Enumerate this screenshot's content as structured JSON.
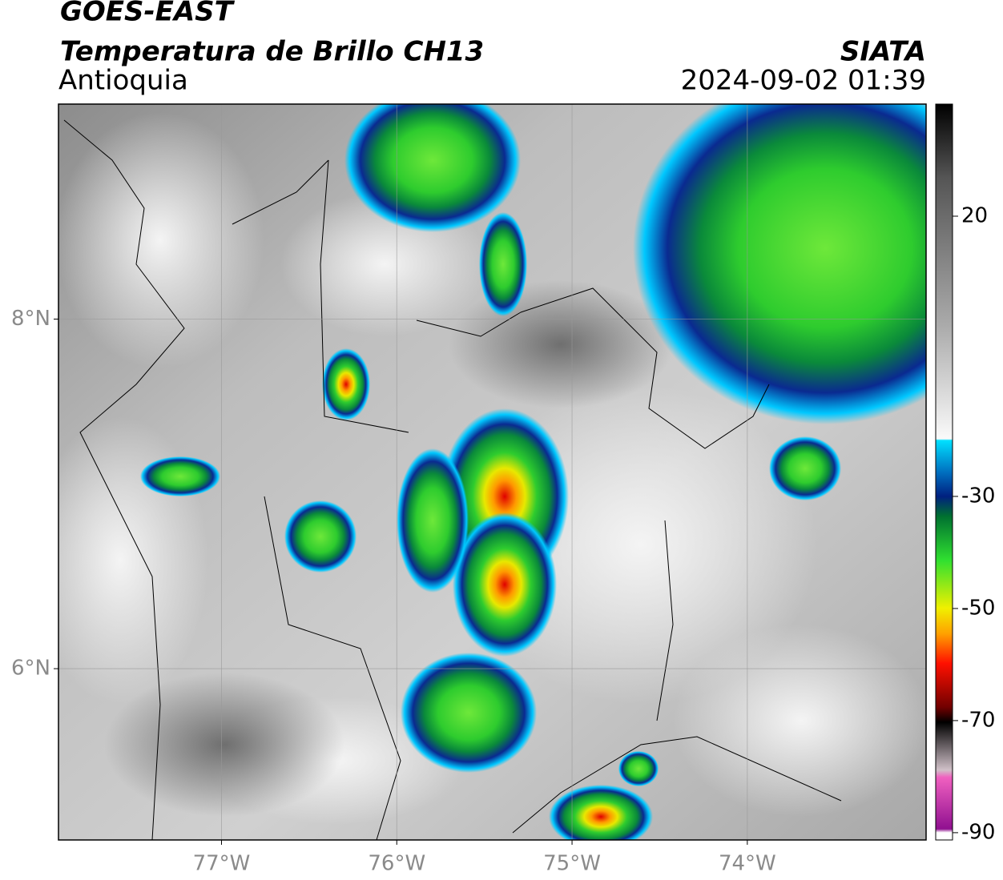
{
  "header": {
    "title": "GOES-EAST",
    "subtitle": "Temperatura de Brillo CH13",
    "region": "Antioquia",
    "source": "SIATA",
    "datetime": "2024-09-02 01:39"
  },
  "map": {
    "xlim": [
      -77.93,
      -72.98
    ],
    "ylim": [
      5.02,
      9.23
    ],
    "xticks": [
      {
        "value": -77,
        "label": "77°W"
      },
      {
        "value": -76,
        "label": "76°W"
      },
      {
        "value": -75,
        "label": "75°W"
      },
      {
        "value": -74,
        "label": "74°W"
      }
    ],
    "yticks": [
      {
        "value": 8,
        "label": "8°N"
      },
      {
        "value": 6,
        "label": "6°N"
      }
    ],
    "grid": true
  },
  "colorbar": {
    "lim": [
      -91.3,
      40
    ],
    "ticks": [
      20,
      -30,
      -50,
      -70,
      -90
    ]
  }
}
